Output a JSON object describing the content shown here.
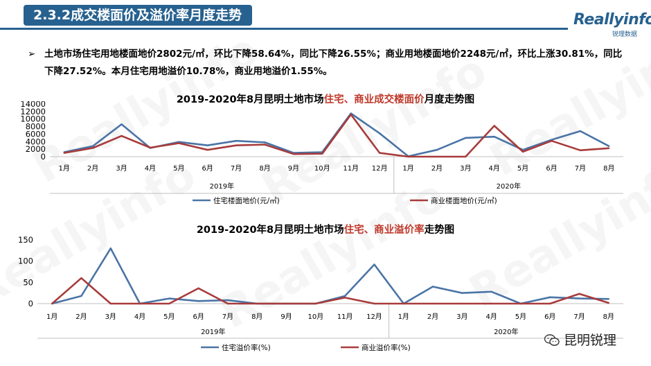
{
  "header": {
    "section_title": "2.3.2成交楼面价及溢价率月度走势",
    "logo_text": "Reallyinfo",
    "logo_sub": "锐理数据"
  },
  "summary": {
    "bullet": "➢",
    "text": "土地市场住宅用地楼面地价2802元/㎡，环比下降58.64%，同比下降26.55%；商业用地楼面地价2248元/㎡，环比上涨30.81%，同比下降27.52%。本月住宅用地溢价10.78%，商业用地溢价1.55%。"
  },
  "watermark": "Reallyinfo",
  "footer": {
    "wechat_label": "昆明锐理",
    "icon": "wechat-icon"
  },
  "chart_data": [
    {
      "type": "line",
      "title_parts": [
        "2019-2020年8月昆明土地市场",
        "住宅、商业",
        "成交楼面价",
        "月度走势图"
      ],
      "categories": [
        "1月",
        "2月",
        "3月",
        "4月",
        "5月",
        "6月",
        "7月",
        "8月",
        "9月",
        "10月",
        "11月",
        "12月",
        "1月",
        "2月",
        "3月",
        "4月",
        "5月",
        "6月",
        "7月",
        "8月"
      ],
      "year_groups": [
        {
          "label": "2019年",
          "count": 12
        },
        {
          "label": "2020年",
          "count": 8
        }
      ],
      "ylim": [
        0,
        14000
      ],
      "yticks": [
        0,
        2000,
        4000,
        6000,
        8000,
        10000,
        12000,
        14000
      ],
      "legend_position": "bottom",
      "series": [
        {
          "name": "住宅楼面地价(元/㎡)",
          "color": "#4a74a6",
          "values": [
            1200,
            2800,
            8600,
            2300,
            3900,
            3000,
            4200,
            3800,
            1000,
            1200,
            11500,
            6200,
            100,
            1800,
            5000,
            5300,
            1800,
            4500,
            6800,
            2800
          ]
        },
        {
          "name": "商业楼面地价(元/㎡)",
          "color": "#a83b3b",
          "values": [
            1000,
            2300,
            5500,
            2400,
            3600,
            1800,
            3000,
            3200,
            700,
            800,
            11200,
            1000,
            0,
            0,
            0,
            8200,
            1300,
            4200,
            1700,
            2248
          ]
        }
      ]
    },
    {
      "type": "line",
      "title_parts": [
        "2019-2020年8月昆明土地市场",
        "住宅、商业溢价率",
        "",
        "走势图"
      ],
      "categories": [
        "1月",
        "2月",
        "3月",
        "4月",
        "5月",
        "6月",
        "7月",
        "8月",
        "9月",
        "10月",
        "11月",
        "12月",
        "1月",
        "2月",
        "3月",
        "4月",
        "5月",
        "6月",
        "7月",
        "8月"
      ],
      "year_groups": [
        {
          "label": "2019年",
          "count": 12
        },
        {
          "label": "2020年",
          "count": 8
        }
      ],
      "ylim": [
        0,
        150
      ],
      "yticks": [
        0,
        50,
        100,
        150
      ],
      "legend_position": "bottom",
      "series": [
        {
          "name": "住宅溢价率(%)",
          "color": "#4a74a6",
          "values": [
            0,
            18,
            130,
            0,
            12,
            6,
            8,
            0,
            0,
            0,
            18,
            92,
            0,
            40,
            25,
            28,
            0,
            15,
            12,
            11
          ]
        },
        {
          "name": "商业溢价率(%)",
          "color": "#a83b3b",
          "values": [
            0,
            60,
            0,
            0,
            0,
            36,
            0,
            0,
            0,
            0,
            14,
            0,
            0,
            0,
            0,
            0,
            0,
            0,
            23,
            1.55
          ]
        }
      ]
    }
  ]
}
